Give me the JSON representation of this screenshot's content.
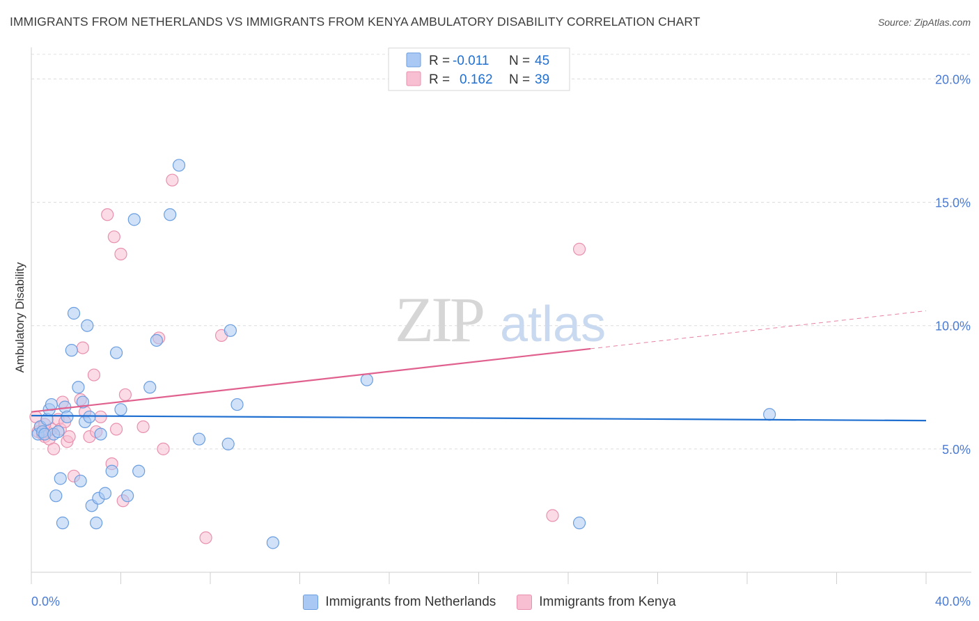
{
  "header": {
    "title": "IMMIGRANTS FROM NETHERLANDS VS IMMIGRANTS FROM KENYA AMBULATORY DISABILITY CORRELATION CHART",
    "source": "Source: ZipAtlas.com"
  },
  "watermark": {
    "zip": "ZIP",
    "atlas": "atlas"
  },
  "colors": {
    "netherlands_fill": "#a9c8f3",
    "netherlands_stroke": "#6a9ee0",
    "netherlands_line": "#1f6fd1",
    "kenya_fill": "#f7bfd1",
    "kenya_stroke": "#e890ae",
    "kenya_line": "#e0608e",
    "tick_text": "#4a7bd4"
  },
  "stats_legend": {
    "rows": [
      {
        "r_label": "R =",
        "r_value": "-0.011",
        "n_label": "N =",
        "n_value": "45"
      },
      {
        "r_label": "R =",
        "r_value": "0.162",
        "n_label": "N =",
        "n_value": "39"
      }
    ]
  },
  "bottom_legend": {
    "netherlands": "Immigrants from Netherlands",
    "kenya": "Immigrants from Kenya"
  },
  "chart_data": {
    "type": "scatter",
    "title": "IMMIGRANTS FROM NETHERLANDS VS IMMIGRANTS FROM KENYA AMBULATORY DISABILITY CORRELATION CHART",
    "xlabel": "",
    "ylabel": "Ambulatory Disability",
    "xlim": [
      0,
      40
    ],
    "ylim": [
      0,
      21
    ],
    "x_tick_labels": [
      "0.0%",
      "40.0%"
    ],
    "y_ticks": [
      5,
      10,
      15,
      20
    ],
    "y_tick_labels": [
      "5.0%",
      "10.0%",
      "15.0%",
      "20.0%"
    ],
    "series": [
      {
        "name": "Immigrants from Netherlands",
        "R": -0.011,
        "N": 45,
        "trend": {
          "x": [
            0,
            40
          ],
          "y": [
            6.35,
            6.15
          ],
          "dashed_from": null
        },
        "points": [
          [
            0.3,
            5.6
          ],
          [
            0.4,
            5.9
          ],
          [
            0.5,
            5.7
          ],
          [
            0.6,
            5.6
          ],
          [
            0.7,
            6.2
          ],
          [
            0.8,
            6.6
          ],
          [
            0.9,
            6.8
          ],
          [
            1.0,
            5.6
          ],
          [
            1.2,
            5.7
          ],
          [
            1.3,
            3.8
          ],
          [
            1.1,
            3.1
          ],
          [
            1.4,
            2.0
          ],
          [
            1.5,
            6.7
          ],
          [
            1.6,
            6.3
          ],
          [
            1.8,
            9.0
          ],
          [
            1.9,
            10.5
          ],
          [
            2.1,
            7.5
          ],
          [
            2.2,
            3.7
          ],
          [
            2.3,
            6.9
          ],
          [
            2.4,
            6.1
          ],
          [
            2.5,
            10.0
          ],
          [
            2.6,
            6.3
          ],
          [
            2.7,
            2.7
          ],
          [
            2.9,
            2.0
          ],
          [
            3.0,
            3.0
          ],
          [
            3.1,
            5.6
          ],
          [
            3.3,
            3.2
          ],
          [
            3.6,
            4.1
          ],
          [
            3.8,
            8.9
          ],
          [
            4.0,
            6.6
          ],
          [
            4.3,
            3.1
          ],
          [
            4.6,
            14.3
          ],
          [
            4.8,
            4.1
          ],
          [
            5.3,
            7.5
          ],
          [
            5.6,
            9.4
          ],
          [
            6.2,
            14.5
          ],
          [
            6.6,
            16.5
          ],
          [
            7.5,
            5.4
          ],
          [
            8.8,
            5.2
          ],
          [
            8.9,
            9.8
          ],
          [
            9.2,
            6.8
          ],
          [
            10.8,
            1.2
          ],
          [
            15.0,
            7.8
          ],
          [
            24.5,
            2.0
          ],
          [
            33.0,
            6.4
          ]
        ]
      },
      {
        "name": "Immigrants from Kenya",
        "R": 0.162,
        "N": 39,
        "trend": {
          "x": [
            0,
            40
          ],
          "y": [
            6.5,
            10.6
          ],
          "dashed_from": 25
        },
        "points": [
          [
            0.3,
            5.7
          ],
          [
            0.4,
            5.9
          ],
          [
            0.5,
            5.6
          ],
          [
            0.6,
            5.5
          ],
          [
            0.7,
            5.7
          ],
          [
            0.8,
            5.4
          ],
          [
            0.9,
            5.8
          ],
          [
            1.0,
            5.0
          ],
          [
            1.2,
            6.2
          ],
          [
            1.3,
            5.8
          ],
          [
            1.4,
            6.9
          ],
          [
            1.5,
            6.1
          ],
          [
            1.6,
            5.3
          ],
          [
            1.7,
            5.5
          ],
          [
            1.9,
            3.9
          ],
          [
            2.2,
            7.0
          ],
          [
            2.3,
            9.1
          ],
          [
            2.4,
            6.5
          ],
          [
            2.6,
            5.5
          ],
          [
            2.8,
            8.0
          ],
          [
            2.9,
            5.7
          ],
          [
            3.1,
            6.3
          ],
          [
            3.4,
            14.5
          ],
          [
            3.6,
            4.4
          ],
          [
            3.7,
            13.6
          ],
          [
            3.8,
            5.8
          ],
          [
            4.0,
            12.9
          ],
          [
            4.1,
            2.9
          ],
          [
            4.2,
            7.2
          ],
          [
            5.0,
            5.9
          ],
          [
            5.7,
            9.5
          ],
          [
            5.9,
            5.0
          ],
          [
            6.3,
            15.9
          ],
          [
            7.8,
            1.4
          ],
          [
            8.5,
            9.6
          ],
          [
            23.3,
            2.3
          ],
          [
            24.5,
            13.1
          ],
          [
            0.2,
            6.3
          ],
          [
            0.6,
            6.0
          ]
        ]
      }
    ]
  }
}
